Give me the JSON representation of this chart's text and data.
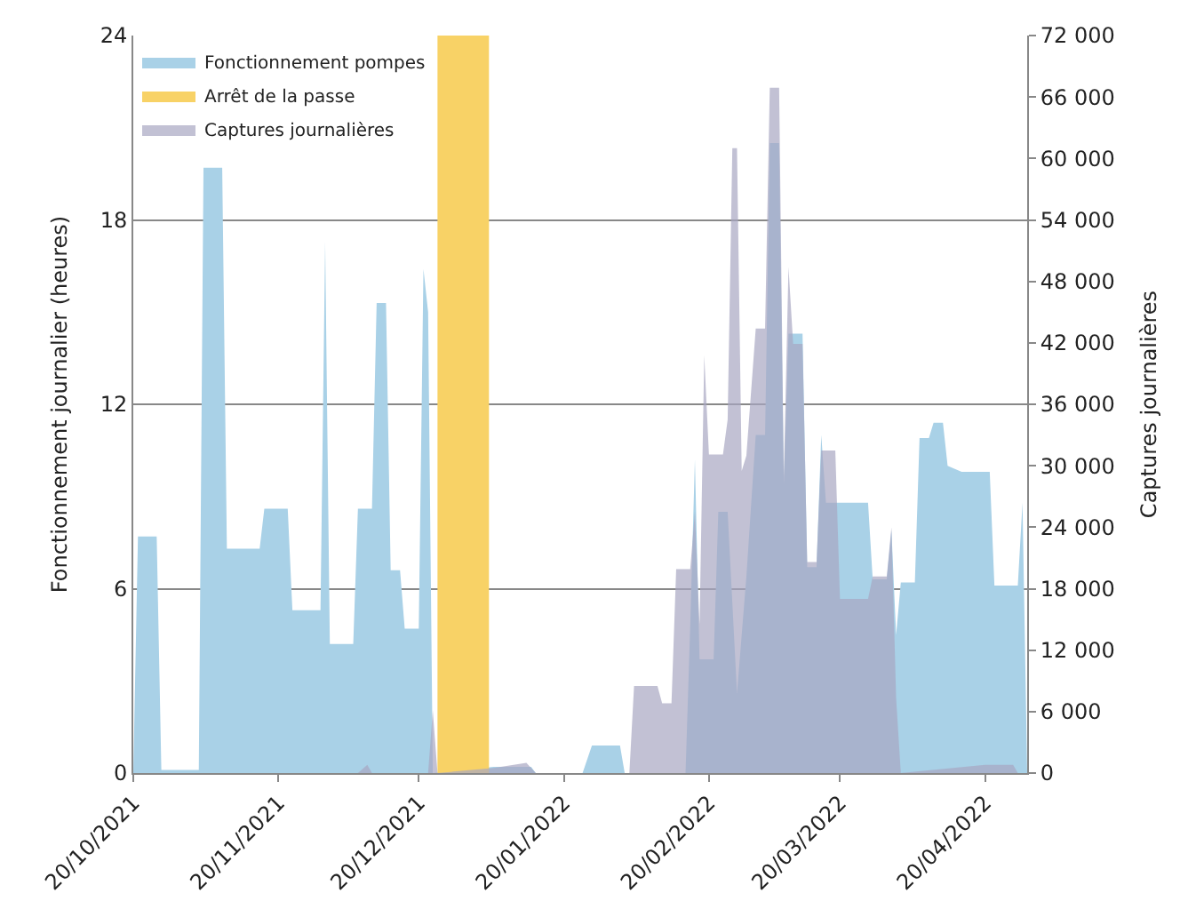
{
  "chart_data": {
    "type": "area",
    "ylabel": "Fonctionnement journalier (heures)",
    "y2label": "Captures journalières",
    "xlim": [
      "2021-10-20",
      "2022-04-29"
    ],
    "xticks": [
      {
        "value": "2021-10-20",
        "label": "20/10/2021"
      },
      {
        "value": "2021-11-20",
        "label": "20/11/2021"
      },
      {
        "value": "2021-12-20",
        "label": "20/12/2021"
      },
      {
        "value": "2022-01-20",
        "label": "20/01/2022"
      },
      {
        "value": "2022-02-20",
        "label": "20/02/2022"
      },
      {
        "value": "2022-03-20",
        "label": "20/03/2022"
      },
      {
        "value": "2022-04-20",
        "label": "20/04/2022"
      }
    ],
    "ylim": [
      0,
      24
    ],
    "yticks": [
      0,
      6,
      12,
      18,
      24
    ],
    "y2lim": [
      0,
      72000
    ],
    "y2ticks": [
      0,
      {
        "value": 6000,
        "label": "6 000"
      },
      {
        "value": 12000,
        "label": "12 000"
      },
      {
        "value": 18000,
        "label": "18 000"
      },
      {
        "value": 24000,
        "label": "24 000"
      },
      {
        "value": 30000,
        "label": "30 000"
      },
      {
        "value": 36000,
        "label": "36 000"
      },
      {
        "value": 42000,
        "label": "42 000"
      },
      {
        "value": 48000,
        "label": "48 000"
      },
      {
        "value": 54000,
        "label": "54 000"
      },
      {
        "value": 60000,
        "label": "60 000"
      },
      {
        "value": 66000,
        "label": "66 000"
      },
      {
        "value": 72000,
        "label": "72 000"
      }
    ],
    "grid": "y",
    "legend": "top left",
    "series": [
      {
        "name": "Fonctionnement pompes",
        "color": "#a9d1e7",
        "x": [
          "2021-10-20",
          "2021-10-21",
          "2021-10-25",
          "2021-10-26",
          "2021-11-03",
          "2021-11-04",
          "2021-11-08",
          "2021-11-09",
          "2021-11-16",
          "2021-11-17",
          "2021-11-22",
          "2021-11-23",
          "2021-11-29",
          "2021-11-30",
          "2021-12-01",
          "2021-12-06",
          "2021-12-07",
          "2021-12-10",
          "2021-12-11",
          "2021-12-13",
          "2021-12-14",
          "2021-12-16",
          "2021-12-17",
          "2021-12-20",
          "2021-12-21",
          "2021-12-22",
          "2021-12-23",
          "2022-01-05",
          "2022-01-13",
          "2022-01-14",
          "2022-01-24",
          "2022-01-26",
          "2022-02-01",
          "2022-02-02",
          "2022-02-15",
          "2022-02-16",
          "2022-02-17",
          "2022-02-18",
          "2022-02-21",
          "2022-02-22",
          "2022-02-24",
          "2022-02-26",
          "2022-02-28",
          "2022-03-02",
          "2022-03-04",
          "2022-03-05",
          "2022-03-07",
          "2022-03-08",
          "2022-03-09",
          "2022-03-12",
          "2022-03-13",
          "2022-03-15",
          "2022-03-16",
          "2022-03-17",
          "2022-03-26",
          "2022-03-27",
          "2022-03-30",
          "2022-03-31",
          "2022-04-01",
          "2022-04-02",
          "2022-04-05",
          "2022-04-06",
          "2022-04-08",
          "2022-04-09",
          "2022-04-11",
          "2022-04-12",
          "2022-04-15",
          "2022-04-21",
          "2022-04-22",
          "2022-04-27",
          "2022-04-28",
          "2022-04-29"
        ],
        "values": [
          0,
          7.7,
          7.7,
          0.1,
          0.1,
          19.7,
          19.7,
          7.3,
          7.3,
          8.6,
          8.6,
          5.3,
          5.3,
          17.3,
          4.2,
          4.2,
          8.6,
          8.6,
          15.3,
          15.3,
          6.6,
          6.6,
          4.7,
          4.7,
          16.4,
          15.0,
          0,
          0.2,
          0.2,
          0,
          0,
          0.9,
          0.9,
          0,
          0,
          4.8,
          10.2,
          3.7,
          3.7,
          8.5,
          8.5,
          2.6,
          6.4,
          11,
          11,
          20.5,
          20.5,
          9.4,
          14.3,
          14.3,
          6.7,
          6.7,
          11,
          8.8,
          8.8,
          6.3,
          6.3,
          7.9,
          4.5,
          6.2,
          6.2,
          10.9,
          10.9,
          11.4,
          11.4,
          10,
          9.8,
          9.8,
          6.1,
          6.1,
          8.8,
          0
        ]
      },
      {
        "name": "Arrêt de la passe",
        "color": "#f8d266",
        "x": [
          "2021-12-24",
          "2022-01-04"
        ],
        "values": [
          24,
          24
        ]
      },
      {
        "name": "Captures journalières",
        "color": "#a8a6c2",
        "axis": "y2",
        "x": [
          "2021-10-20",
          "2021-12-07",
          "2021-12-09",
          "2021-12-10",
          "2021-12-22",
          "2021-12-23",
          "2021-12-24",
          "2022-01-05",
          "2022-01-12",
          "2022-01-14",
          "2022-02-03",
          "2022-02-04",
          "2022-02-09",
          "2022-02-10",
          "2022-02-12",
          "2022-02-13",
          "2022-02-16",
          "2022-02-17",
          "2022-02-18",
          "2022-02-19",
          "2022-02-20",
          "2022-02-23",
          "2022-02-24",
          "2022-02-25",
          "2022-02-26",
          "2022-02-27",
          "2022-02-28",
          "2022-03-02",
          "2022-03-04",
          "2022-03-05",
          "2022-03-07",
          "2022-03-08",
          "2022-03-09",
          "2022-03-10",
          "2022-03-12",
          "2022-03-13",
          "2022-03-15",
          "2022-03-16",
          "2022-03-19",
          "2022-03-20",
          "2022-03-26",
          "2022-03-27",
          "2022-03-30",
          "2022-03-31",
          "2022-04-01",
          "2022-04-02",
          "2022-04-20",
          "2022-04-26",
          "2022-04-27"
        ],
        "values": [
          0,
          0,
          800,
          0,
          0,
          6100,
          0,
          500,
          1000,
          0,
          0,
          8500,
          8500,
          6800,
          6800,
          19900,
          19900,
          25500,
          14500,
          40800,
          31100,
          31100,
          34500,
          61000,
          61000,
          29500,
          31000,
          43400,
          43400,
          66900,
          66900,
          29000,
          49400,
          41900,
          41900,
          20600,
          20600,
          31500,
          31500,
          17000,
          17000,
          19200,
          19200,
          24000,
          7300,
          0,
          800,
          800,
          0
        ]
      }
    ]
  }
}
